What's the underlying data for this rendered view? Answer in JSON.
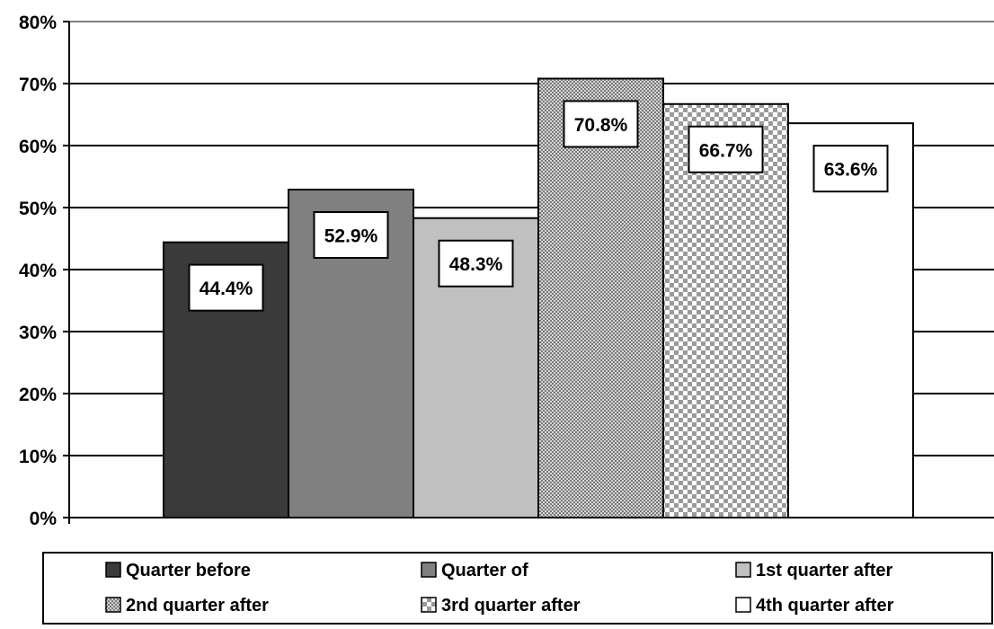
{
  "chart_data": {
    "type": "bar",
    "categories": [
      "Quarter before",
      "Quarter of",
      "1st quarter after",
      "2nd quarter after",
      "3rd quarter after",
      "4th quarter after"
    ],
    "values": [
      44.4,
      52.9,
      48.3,
      70.8,
      66.7,
      63.6
    ],
    "value_labels": [
      "44.4%",
      "52.9%",
      "48.3%",
      "70.8%",
      "66.7%",
      "63.6%"
    ],
    "title": "",
    "xlabel": "",
    "ylabel": "",
    "ylim": [
      0,
      80
    ],
    "yticks": [
      0,
      10,
      20,
      30,
      40,
      50,
      60,
      70,
      80
    ],
    "ytick_labels": [
      "0%",
      "10%",
      "20%",
      "30%",
      "40%",
      "50%",
      "60%",
      "70%",
      "80%"
    ],
    "grid": true,
    "legend_position": "bottom",
    "legend": [
      {
        "name": "Quarter before",
        "color": "#3a3a3a",
        "pattern": "solid"
      },
      {
        "name": "Quarter of",
        "color": "#808080",
        "pattern": "solid"
      },
      {
        "name": "1st quarter after",
        "color": "#c0c0c0",
        "pattern": "solid"
      },
      {
        "name": "2nd quarter after",
        "color": "#a8a8a8",
        "pattern": "fine-dots"
      },
      {
        "name": "3rd quarter after",
        "color": "#a0a0a0",
        "pattern": "checker"
      },
      {
        "name": "4th quarter after",
        "color": "#ffffff",
        "pattern": "solid"
      }
    ]
  }
}
